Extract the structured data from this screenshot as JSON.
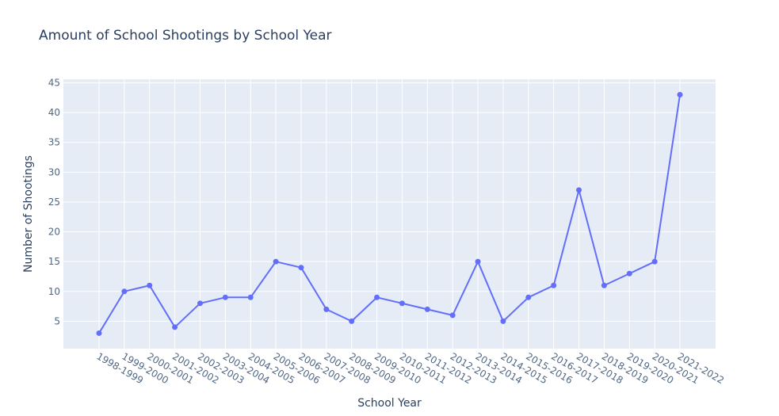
{
  "chart_data": {
    "type": "line",
    "title": "Amount of School Shootings by School Year",
    "xlabel": "School Year",
    "ylabel": "Number of Shootings",
    "categories": [
      "1998-1999",
      "1999-2000",
      "2000-2001",
      "2001-2002",
      "2002-2003",
      "2003-2004",
      "2004-2005",
      "2005-2006",
      "2006-2007",
      "2007-2008",
      "2008-2009",
      "2009-2010",
      "2010-2011",
      "2011-2012",
      "2012-2013",
      "2013-2014",
      "2014-2015",
      "2015-2016",
      "2016-2017",
      "2017-2018",
      "2018-2019",
      "2019-2020",
      "2020-2021",
      "2021-2022"
    ],
    "values": [
      3,
      10,
      11,
      4,
      8,
      9,
      9,
      15,
      14,
      7,
      5,
      9,
      8,
      7,
      6,
      15,
      5,
      9,
      11,
      27,
      11,
      13,
      15,
      43
    ],
    "ylim": [
      0.4,
      45.6
    ],
    "yticks": [
      5,
      10,
      15,
      20,
      25,
      30,
      35,
      40,
      45
    ],
    "grid": true,
    "legend": "none",
    "colors": {
      "line": "#636efa",
      "plot_bg": "#e5ecf6",
      "grid": "#ffffff",
      "text": "#2a3f5f",
      "tick_text": "#506784"
    }
  }
}
